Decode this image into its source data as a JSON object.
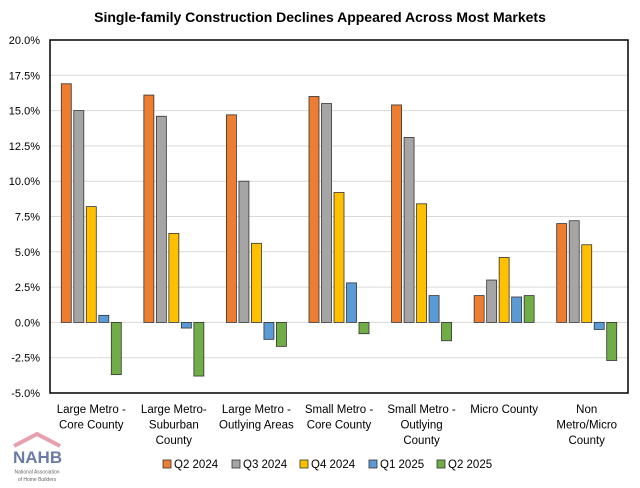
{
  "chart_data": {
    "type": "bar",
    "title": "Single-family Construction Declines Appeared Across Most Markets",
    "xlabel": "",
    "ylabel": "",
    "ylim": [
      -5,
      20
    ],
    "y_ticks": [
      "20.0%",
      "17.5%",
      "15.0%",
      "12.5%",
      "10.0%",
      "7.5%",
      "5.0%",
      "2.5%",
      "0.0%",
      "-2.5%",
      "-5.0%"
    ],
    "grid": true,
    "legend_position": "bottom",
    "categories": [
      [
        "Large Metro -",
        "Core County"
      ],
      [
        "Large Metro-",
        "Suburban",
        "County"
      ],
      [
        "Large Metro -",
        "Outlying Areas"
      ],
      [
        "Small Metro -",
        "Core County"
      ],
      [
        "Small Metro -",
        "Outlying",
        "County"
      ],
      [
        "Micro County"
      ],
      [
        "Non",
        "Metro/Micro",
        "County"
      ]
    ],
    "series": [
      {
        "name": "Q2 2024",
        "color": "#ED7D31",
        "values": [
          16.9,
          16.1,
          14.7,
          16.0,
          15.4,
          1.9,
          7.0
        ]
      },
      {
        "name": "Q3 2024",
        "color": "#A5A5A5",
        "values": [
          15.0,
          14.6,
          10.0,
          15.5,
          13.1,
          3.0,
          7.2
        ]
      },
      {
        "name": "Q4 2024",
        "color": "#FFC000",
        "values": [
          8.2,
          6.3,
          5.6,
          9.2,
          8.4,
          4.6,
          5.5
        ]
      },
      {
        "name": "Q1 2025",
        "color": "#5B9BD5",
        "values": [
          0.5,
          -0.4,
          -1.2,
          2.8,
          1.9,
          1.8,
          -0.5
        ]
      },
      {
        "name": "Q2 2025",
        "color": "#70AD47",
        "values": [
          -3.7,
          -3.8,
          -1.7,
          -0.8,
          -1.3,
          1.9,
          -2.7
        ]
      }
    ]
  },
  "logo": {
    "text": "NAHB",
    "subtitle_lines": [
      "National Association",
      "of Home Builders"
    ]
  }
}
